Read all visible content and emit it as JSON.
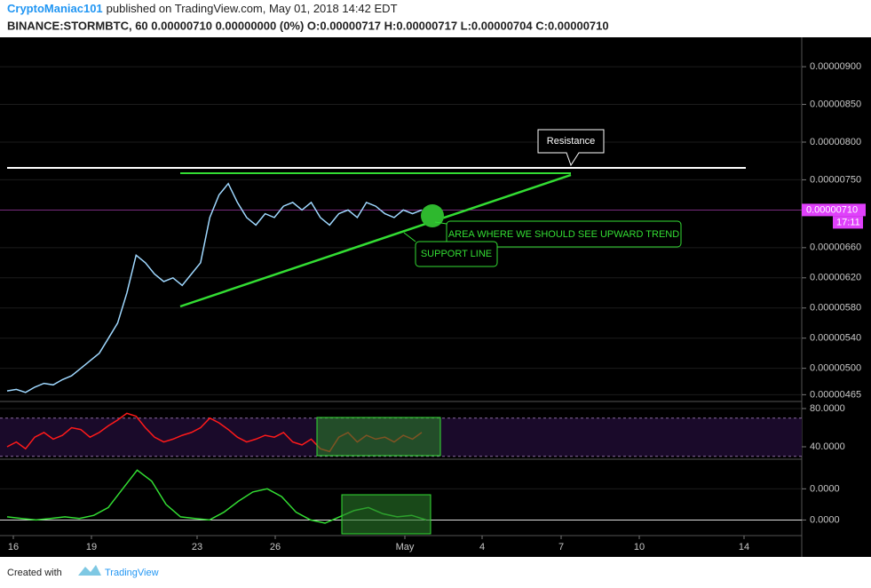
{
  "header": {
    "author": "CryptoManiac101",
    "published": "published on TradingView.com, May 01, 2018 14:42 EDT",
    "symbol_line": "BINANCE:STORMBTC, 60 0.00000710 0.00000000 (0%) O:0.00000717 H:0.00000717 L:0.00000704 C:0.00000710"
  },
  "price_panel": {
    "ylim": [
      4.56e-06,
      9.39e-06
    ],
    "yticks": [
      {
        "value": 9e-06,
        "label": "0.00000900"
      },
      {
        "value": 8.5e-06,
        "label": "0.00000850"
      },
      {
        "value": 8e-06,
        "label": "0.00000800"
      },
      {
        "value": 7.5e-06,
        "label": "0.00000750"
      },
      {
        "value": 6.6e-06,
        "label": "0.00000660"
      },
      {
        "value": 6.2e-06,
        "label": "0.00000620"
      },
      {
        "value": 5.8e-06,
        "label": "0.00000580"
      },
      {
        "value": 5.4e-06,
        "label": "0.00000540"
      },
      {
        "value": 5e-06,
        "label": "0.00000500"
      },
      {
        "value": 4.65e-06,
        "label": "0.00000465"
      }
    ],
    "current_price": {
      "value": 7.1e-06,
      "label": "0.00000710",
      "time": "17:11"
    },
    "closes": [
      4.7e-06,
      4.72e-06,
      4.68e-06,
      4.75e-06,
      4.8e-06,
      4.78e-06,
      4.85e-06,
      4.9e-06,
      5e-06,
      5.1e-06,
      5.2e-06,
      5.4e-06,
      5.6e-06,
      6e-06,
      6.5e-06,
      6.4e-06,
      6.25e-06,
      6.15e-06,
      6.2e-06,
      6.1e-06,
      6.25e-06,
      6.4e-06,
      7e-06,
      7.3e-06,
      7.45e-06,
      7.2e-06,
      7e-06,
      6.9e-06,
      7.05e-06,
      7e-06,
      7.15e-06,
      7.2e-06,
      7.1e-06,
      7.2e-06,
      7e-06,
      6.9e-06,
      7.05e-06,
      7.1e-06,
      7e-06,
      7.2e-06,
      7.15e-06,
      7.05e-06,
      7e-06,
      7.1e-06,
      7.05e-06,
      7.1e-06
    ],
    "color": "#9fd8ff"
  },
  "rsi_panel": {
    "ylim": [
      27,
      87.4
    ],
    "yticks": [
      {
        "value": 80,
        "label": "80.0000"
      },
      {
        "value": 40,
        "label": "40.0000"
      }
    ],
    "bands": [
      70,
      30
    ],
    "values": [
      40,
      45,
      38,
      50,
      55,
      48,
      52,
      60,
      58,
      50,
      55,
      62,
      68,
      75,
      72,
      60,
      50,
      45,
      48,
      52,
      55,
      60,
      70,
      65,
      58,
      50,
      45,
      48,
      52,
      50,
      55,
      45,
      42,
      48,
      38,
      35,
      50,
      55,
      45,
      52,
      48,
      50,
      45,
      52,
      48,
      55
    ],
    "color": "#ff1a1a"
  },
  "macd_panel": {
    "ylim": [
      -1e-07,
      3.9e-07
    ],
    "yticks": [
      {
        "value": 2e-07,
        "label": "0.0000"
      },
      {
        "value": 0,
        "label": "0.0000"
      }
    ],
    "values": [
      2e-08,
      1e-08,
      0,
      1e-08,
      2e-08,
      1e-08,
      3e-08,
      8e-08,
      2e-07,
      3.2e-07,
      2.5e-07,
      1e-07,
      2e-08,
      1e-08,
      0,
      5e-08,
      1.2e-07,
      1.8e-07,
      2e-07,
      1.5e-07,
      5e-08,
      0,
      -2e-08,
      2e-08,
      6e-08,
      8e-08,
      4e-08,
      2e-08,
      3e-08,
      0
    ],
    "color": "#33dd33"
  },
  "x_axis": {
    "labels": [
      "16",
      "19",
      "23",
      "26",
      "May",
      "4",
      "7",
      "10",
      "14"
    ]
  },
  "annotations": {
    "resistance": "Resistance",
    "area": "AREA WHERE WE SHOULD SEE UPWARD TREND",
    "support": "SUPPORT LINE"
  },
  "footer": {
    "created_with": "Created with",
    "brand": "TradingView"
  }
}
